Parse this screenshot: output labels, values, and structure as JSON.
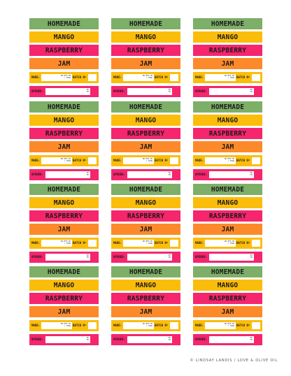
{
  "label": {
    "line1": "HOMEMADE",
    "line2": "MANGO",
    "line3": "RASPBERRY",
    "line4": "JAM",
    "made_label": "MADE:",
    "made_hint_1": "DD MTH YR",
    "made_hint_2": "/ YEAR",
    "batch_label": "BATCH Nº",
    "opened_label": "OPENED:",
    "opened_hint_1": "BY",
    "opened_hint_2": "MY"
  },
  "colors": {
    "green": "#7daf68",
    "yellow": "#fbbd0b",
    "pink": "#f5256e",
    "orange": "#fd8a2a"
  },
  "footer": {
    "credit": "© LINDSAY LANDIS / LOVE & OLIVE OIL"
  }
}
